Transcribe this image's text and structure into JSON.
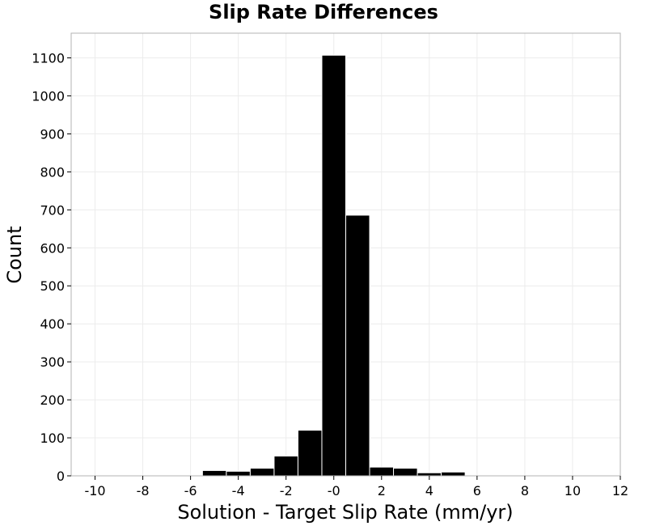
{
  "chart_data": {
    "type": "bar",
    "title": "Slip Rate Differences",
    "xlabel": "Solution - Target Slip Rate (mm/yr)",
    "ylabel": "Count",
    "xlim": [
      -11,
      12
    ],
    "ylim": [
      0,
      1165
    ],
    "xticks": [
      -10,
      -8,
      -6,
      -4,
      -2,
      0,
      2,
      4,
      6,
      8,
      10,
      12
    ],
    "xtick_labels": [
      "-10",
      "-8",
      "-6",
      "-4",
      "-2",
      "-0",
      "2",
      "4",
      "6",
      "8",
      "10",
      "12"
    ],
    "yticks": [
      0,
      100,
      200,
      300,
      400,
      500,
      600,
      700,
      800,
      900,
      1000,
      1100
    ],
    "grid": true,
    "bar_width": 1,
    "bar_color": "#000000",
    "bins": [
      {
        "center": -10,
        "value": 1
      },
      {
        "center": -9,
        "value": 0
      },
      {
        "center": -8,
        "value": 1
      },
      {
        "center": -7,
        "value": 1
      },
      {
        "center": -6,
        "value": 1
      },
      {
        "center": -5,
        "value": 14
      },
      {
        "center": -4,
        "value": 12
      },
      {
        "center": -3,
        "value": 20
      },
      {
        "center": -2,
        "value": 52
      },
      {
        "center": -1,
        "value": 120
      },
      {
        "center": 0,
        "value": 1107
      },
      {
        "center": 1,
        "value": 686
      },
      {
        "center": 2,
        "value": 23
      },
      {
        "center": 3,
        "value": 20
      },
      {
        "center": 4,
        "value": 8
      },
      {
        "center": 5,
        "value": 10
      },
      {
        "center": 6,
        "value": 0
      },
      {
        "center": 7,
        "value": 1
      },
      {
        "center": 8,
        "value": 0
      },
      {
        "center": 9,
        "value": 1
      },
      {
        "center": 10,
        "value": 1
      },
      {
        "center": 11,
        "value": 0
      }
    ]
  }
}
